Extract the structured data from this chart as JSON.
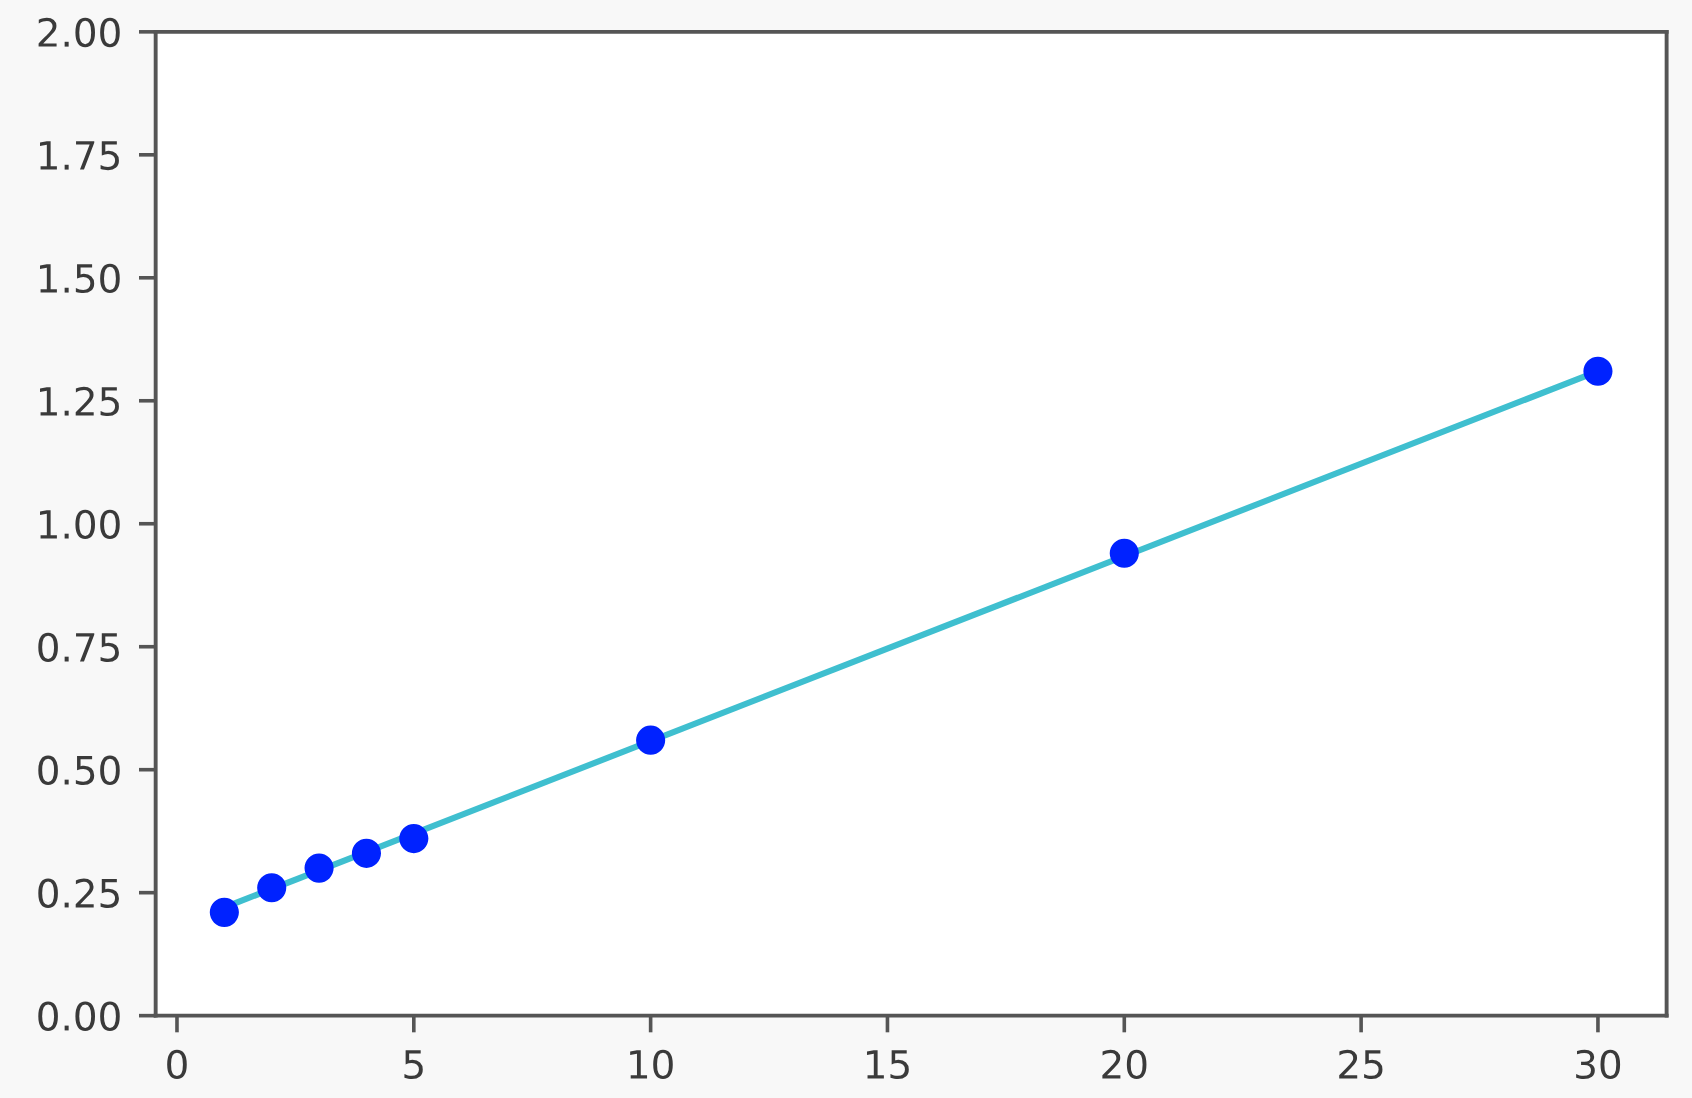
{
  "chart_data": {
    "type": "scatter",
    "x": [
      1,
      2,
      3,
      4,
      5,
      10,
      20,
      30
    ],
    "series": [
      {
        "type": "line",
        "x": [
          1,
          30
        ],
        "values": [
          0.22,
          1.31
        ],
        "color": "#3fbfcf"
      },
      {
        "values": [
          0.21,
          0.26,
          0.3,
          0.33,
          0.36,
          0.56,
          0.94,
          1.31
        ],
        "color": "#0022ff",
        "marker": "circle"
      }
    ],
    "xlim": [
      -0.45,
      31.45
    ],
    "xticks": [
      0,
      5,
      10,
      15,
      20,
      25,
      30
    ],
    "ylim": [
      0,
      2
    ],
    "yticks": [
      {
        "value": 0,
        "label": "0.00"
      },
      {
        "value": 0.25,
        "label": "0.25"
      },
      {
        "value": 0.5,
        "label": "0.50"
      },
      {
        "value": 0.75,
        "label": "0.75"
      },
      {
        "value": 1,
        "label": "1.00"
      },
      {
        "value": 1.25,
        "label": "1.25"
      },
      {
        "value": 1.5,
        "label": "1.50"
      },
      {
        "value": 1.75,
        "label": "1.75"
      },
      {
        "value": 2,
        "label": "2.00"
      }
    ],
    "grid": false
  }
}
